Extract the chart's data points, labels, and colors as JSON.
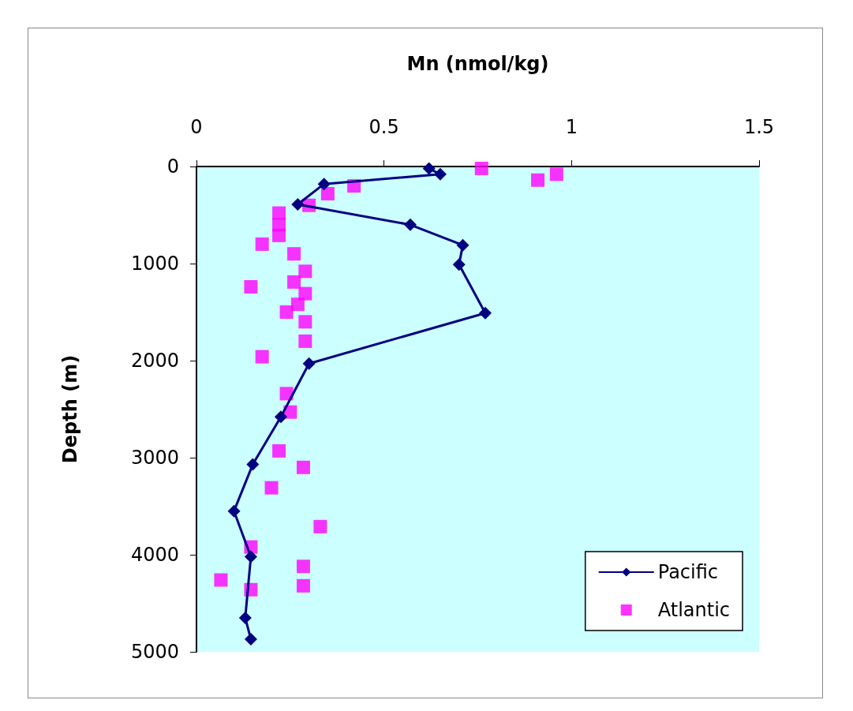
{
  "chart_data": {
    "type": "line",
    "xlabel": "Mn (nmol/kg)",
    "ylabel": "Depth (m)",
    "xlim": [
      0,
      1.5
    ],
    "xticks": [
      0,
      0.5,
      1,
      1.5
    ],
    "ylim": [
      5000,
      0
    ],
    "yticks": [
      0,
      1000,
      2000,
      3000,
      4000,
      5000
    ],
    "grid": false,
    "legend": "bottom right",
    "series": [
      {
        "name": "Pacific",
        "color": "#000080",
        "marker": "diamond",
        "line_style": "solid",
        "x": [
          0.62,
          0.65,
          0.34,
          0.27,
          0.57,
          0.71,
          0.7,
          0.77,
          0.3,
          0.225,
          0.15,
          0.1,
          0.145,
          0.13,
          0.145
        ],
        "values": [
          20,
          80,
          180,
          390,
          600,
          810,
          1010,
          1510,
          2030,
          2580,
          3070,
          3550,
          4020,
          4650,
          4870
        ]
      },
      {
        "name": "Atlantic",
        "type": "scatter",
        "color": "#ff00ff",
        "marker": "square",
        "x": [
          0.76,
          0.96,
          0.91,
          0.42,
          0.35,
          0.3,
          0.22,
          0.22,
          0.22,
          0.175,
          0.26,
          0.29,
          0.145,
          0.26,
          0.29,
          0.27,
          0.24,
          0.29,
          0.29,
          0.175,
          0.24,
          0.25,
          0.22,
          0.285,
          0.2,
          0.33,
          0.145,
          0.285,
          0.065,
          0.285,
          0.145
        ],
        "values": [
          20,
          80,
          140,
          200,
          280,
          400,
          480,
          600,
          710,
          800,
          900,
          1080,
          1240,
          1190,
          1310,
          1420,
          1500,
          1600,
          1800,
          1960,
          2340,
          2530,
          2930,
          3100,
          3310,
          3710,
          3920,
          4120,
          4260,
          4320,
          4360
        ]
      }
    ]
  }
}
